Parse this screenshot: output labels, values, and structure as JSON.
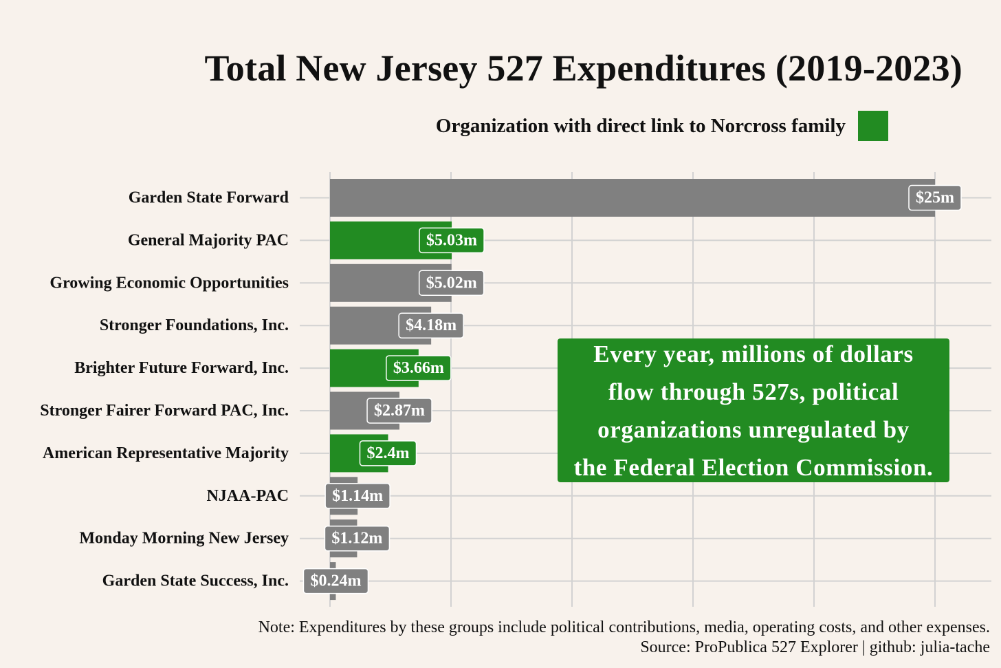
{
  "colors": {
    "background": "#f8f2ec",
    "grey": "#808080",
    "green": "#228b22",
    "grid": "#d2d2d2"
  },
  "legend": {
    "label": "Organization with direct link to Norcross family",
    "swatch_color": "#228b22"
  },
  "callout": {
    "lines": [
      "Every year, millions of dollars",
      "flow through 527s, political",
      "organizations unregulated by",
      "the Federal Election Commission."
    ]
  },
  "footer": {
    "note": "Note: Expenditures by these groups include political contributions, media, operating costs, and other expenses.",
    "source": "Source: ProPublica 527 Explorer | github: julia-tache"
  },
  "chart_data": {
    "type": "bar",
    "orientation": "horizontal",
    "title": "Total New Jersey 527 Expenditures (2019-2023)",
    "xlabel": "",
    "ylabel": "",
    "xlim": [
      0,
      27.5
    ],
    "grid": true,
    "legend_position": "top-right",
    "categories": [
      "Garden State Forward",
      "General Majority PAC",
      "Growing Economic Opportunities",
      "Stronger Foundations, Inc.",
      "Brighter Future Forward, Inc.",
      "Stronger Fairer Forward PAC, Inc.",
      "American Representative Majority",
      "NJAA-PAC",
      "Monday Morning New Jersey",
      "Garden State Success, Inc."
    ],
    "values": [
      25,
      5.03,
      5.02,
      4.18,
      3.66,
      2.87,
      2.4,
      1.14,
      1.12,
      0.24
    ],
    "value_labels": [
      "$25m",
      "$5.03m",
      "$5.02m",
      "$4.18m",
      "$3.66m",
      "$2.87m",
      "$2.4m",
      "$1.14m",
      "$1.12m",
      "$0.24m"
    ],
    "norcross_link": [
      false,
      true,
      false,
      false,
      true,
      false,
      true,
      false,
      false,
      false
    ]
  }
}
